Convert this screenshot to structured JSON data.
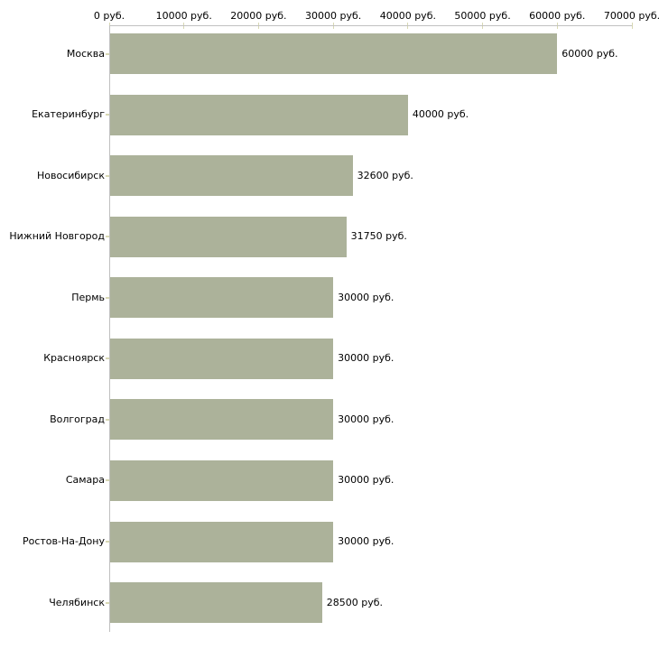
{
  "chart_data": {
    "type": "bar",
    "orientation": "horizontal",
    "title": "",
    "xlabel": "",
    "ylabel": "",
    "categories": [
      "Москва",
      "Екатеринбург",
      "Новосибирск",
      "Нижний Новгород",
      "Пермь",
      "Красноярск",
      "Волгоград",
      "Самара",
      "Ростов-На-Дону",
      "Челябинск"
    ],
    "values": [
      60000,
      40000,
      32600,
      31750,
      30000,
      30000,
      30000,
      30000,
      30000,
      28500
    ],
    "value_labels": [
      "60000 руб.",
      "40000 руб.",
      "32600 руб.",
      "31750 руб.",
      "30000 руб.",
      "30000 руб.",
      "30000 руб.",
      "30000 руб.",
      "30000 руб.",
      "28500 руб."
    ],
    "xlim": [
      0,
      70000
    ],
    "x_ticks": [
      0,
      10000,
      20000,
      30000,
      40000,
      50000,
      60000,
      70000
    ],
    "x_tick_labels": [
      "0 руб.",
      "10000 руб.",
      "20000 руб.",
      "30000 руб.",
      "40000 руб.",
      "50000 руб.",
      "60000 руб.",
      "70000 руб."
    ],
    "axis_position": "top",
    "grid": false,
    "legend": false,
    "colors": {
      "bar": "#acb29a",
      "axis_line": "#c0c0c0",
      "tick": "#d8d8b4",
      "text": "#000000",
      "background": "#ffffff"
    }
  }
}
